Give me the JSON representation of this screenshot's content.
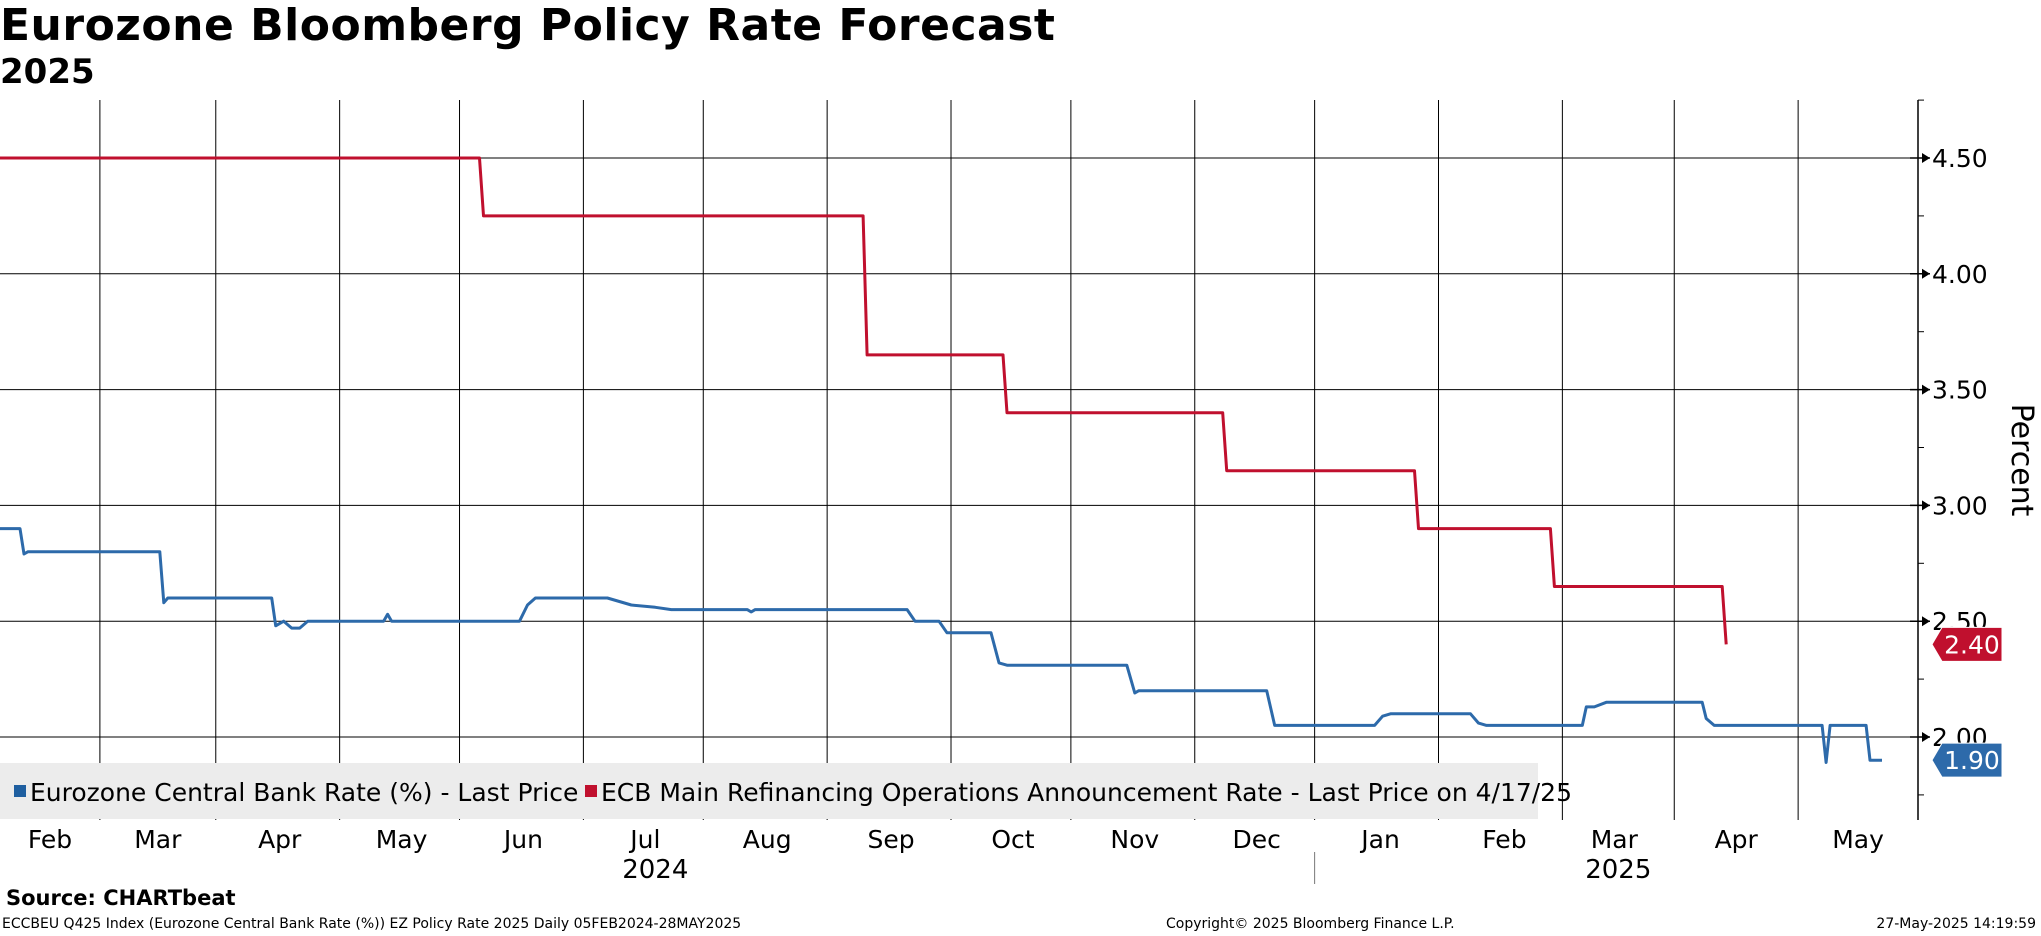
{
  "header": {
    "title": "Eurozone Bloomberg Policy Rate Forecast",
    "subtitle": "2025"
  },
  "footer": {
    "source": "Source: CHARTbeat",
    "description": "ECCBEU Q425 Index (Eurozone Central Bank Rate (%)) EZ Policy Rate 2025  Daily 05FEB2024-28MAY2025",
    "copyright": "Copyright© 2025 Bloomberg Finance L.P.",
    "timestamp": "27-May-2025 14:19:59"
  },
  "chart_data": {
    "type": "line",
    "title": "Eurozone Bloomberg Policy Rate Forecast",
    "subtitle": "2025",
    "ylabel": "Percent",
    "xlabel": "",
    "ylim": [
      1.65,
      4.75
    ],
    "xlim": [
      0,
      480
    ],
    "y_ticks": [
      2.0,
      2.5,
      3.0,
      3.5,
      4.0,
      4.5
    ],
    "y_tick_labels": [
      "2.00",
      "2.50",
      "3.00",
      "3.50",
      "4.00",
      "4.50"
    ],
    "x_ticks": [
      {
        "label": "Feb",
        "day": 12.5
      },
      {
        "label": "Mar",
        "day": 39.5
      },
      {
        "label": "Apr",
        "day": 70
      },
      {
        "label": "May",
        "day": 100.5
      },
      {
        "label": "Jun",
        "day": 131
      },
      {
        "label": "Jul",
        "day": 161.5
      },
      {
        "label": "Aug",
        "day": 192
      },
      {
        "label": "Sep",
        "day": 223
      },
      {
        "label": "Oct",
        "day": 253.5
      },
      {
        "label": "Nov",
        "day": 284
      },
      {
        "label": "Dec",
        "day": 314.5
      },
      {
        "label": "Jan",
        "day": 345.5
      },
      {
        "label": "Feb",
        "day": 376.5
      },
      {
        "label": "Mar",
        "day": 404
      },
      {
        "label": "Apr",
        "day": 434.5
      },
      {
        "label": "May",
        "day": 465
      }
    ],
    "month_gridlines": [
      25,
      54,
      85,
      115,
      146,
      176,
      207,
      238,
      268,
      299,
      329,
      360,
      391,
      419,
      450
    ],
    "year_labels": [
      {
        "label": "2024",
        "day": 164
      },
      {
        "label": "2025",
        "day": 405
      }
    ],
    "year_separator_day": 329,
    "grid": true,
    "legend": {
      "position": "bottom-left",
      "entries": [
        {
          "label": "Eurozone Central Bank Rate (%) - Last Price",
          "color": "#1f5fa0"
        },
        {
          "label": "ECB Main Refinancing Operations Announcement Rate - Last Price on 4/17/25",
          "color": "#c0102e"
        }
      ]
    },
    "series": [
      {
        "name": "Eurozone Central Bank Rate (%) - Last Price",
        "color": "#2d6aaa",
        "last_value_label": "1.90",
        "last_value": 1.9,
        "points": [
          [
            0,
            2.9
          ],
          [
            5,
            2.9
          ],
          [
            6,
            2.79
          ],
          [
            7,
            2.8
          ],
          [
            40,
            2.8
          ],
          [
            41,
            2.58
          ],
          [
            42,
            2.6
          ],
          [
            68,
            2.6
          ],
          [
            69,
            2.48
          ],
          [
            71,
            2.5
          ],
          [
            73,
            2.47
          ],
          [
            75,
            2.47
          ],
          [
            77,
            2.5
          ],
          [
            96,
            2.5
          ],
          [
            97,
            2.53
          ],
          [
            98,
            2.5
          ],
          [
            130,
            2.5
          ],
          [
            132,
            2.57
          ],
          [
            134,
            2.6
          ],
          [
            152,
            2.6
          ],
          [
            158,
            2.57
          ],
          [
            164,
            2.56
          ],
          [
            168,
            2.55
          ],
          [
            187,
            2.55
          ],
          [
            188,
            2.54
          ],
          [
            189,
            2.55
          ],
          [
            227,
            2.55
          ],
          [
            229,
            2.5
          ],
          [
            235,
            2.5
          ],
          [
            237,
            2.45
          ],
          [
            248,
            2.45
          ],
          [
            250,
            2.32
          ],
          [
            252,
            2.31
          ],
          [
            282,
            2.31
          ],
          [
            284,
            2.19
          ],
          [
            285,
            2.2
          ],
          [
            317,
            2.2
          ],
          [
            319,
            2.05
          ],
          [
            344,
            2.05
          ],
          [
            346,
            2.09
          ],
          [
            348,
            2.1
          ],
          [
            368,
            2.1
          ],
          [
            370,
            2.06
          ],
          [
            372,
            2.05
          ],
          [
            396,
            2.05
          ],
          [
            397,
            2.13
          ],
          [
            399,
            2.13
          ],
          [
            402,
            2.15
          ],
          [
            426,
            2.15
          ],
          [
            427,
            2.08
          ],
          [
            429,
            2.05
          ],
          [
            456,
            2.05
          ],
          [
            457,
            1.89
          ],
          [
            458,
            2.05
          ],
          [
            467,
            2.05
          ],
          [
            468,
            1.9
          ],
          [
            471,
            1.9
          ]
        ]
      },
      {
        "name": "ECB Main Refinancing Operations Announcement Rate - Last Price on 4/17/25",
        "color": "#c0102e",
        "last_value_label": "2.40",
        "last_value": 2.4,
        "points": [
          [
            0,
            4.5
          ],
          [
            120,
            4.5
          ],
          [
            121,
            4.25
          ],
          [
            216,
            4.25
          ],
          [
            217,
            3.65
          ],
          [
            251,
            3.65
          ],
          [
            252,
            3.4
          ],
          [
            306,
            3.4
          ],
          [
            307,
            3.15
          ],
          [
            354,
            3.15
          ],
          [
            355,
            2.9
          ],
          [
            388,
            2.9
          ],
          [
            389,
            2.65
          ],
          [
            431,
            2.65
          ],
          [
            432,
            2.4
          ]
        ]
      }
    ]
  }
}
